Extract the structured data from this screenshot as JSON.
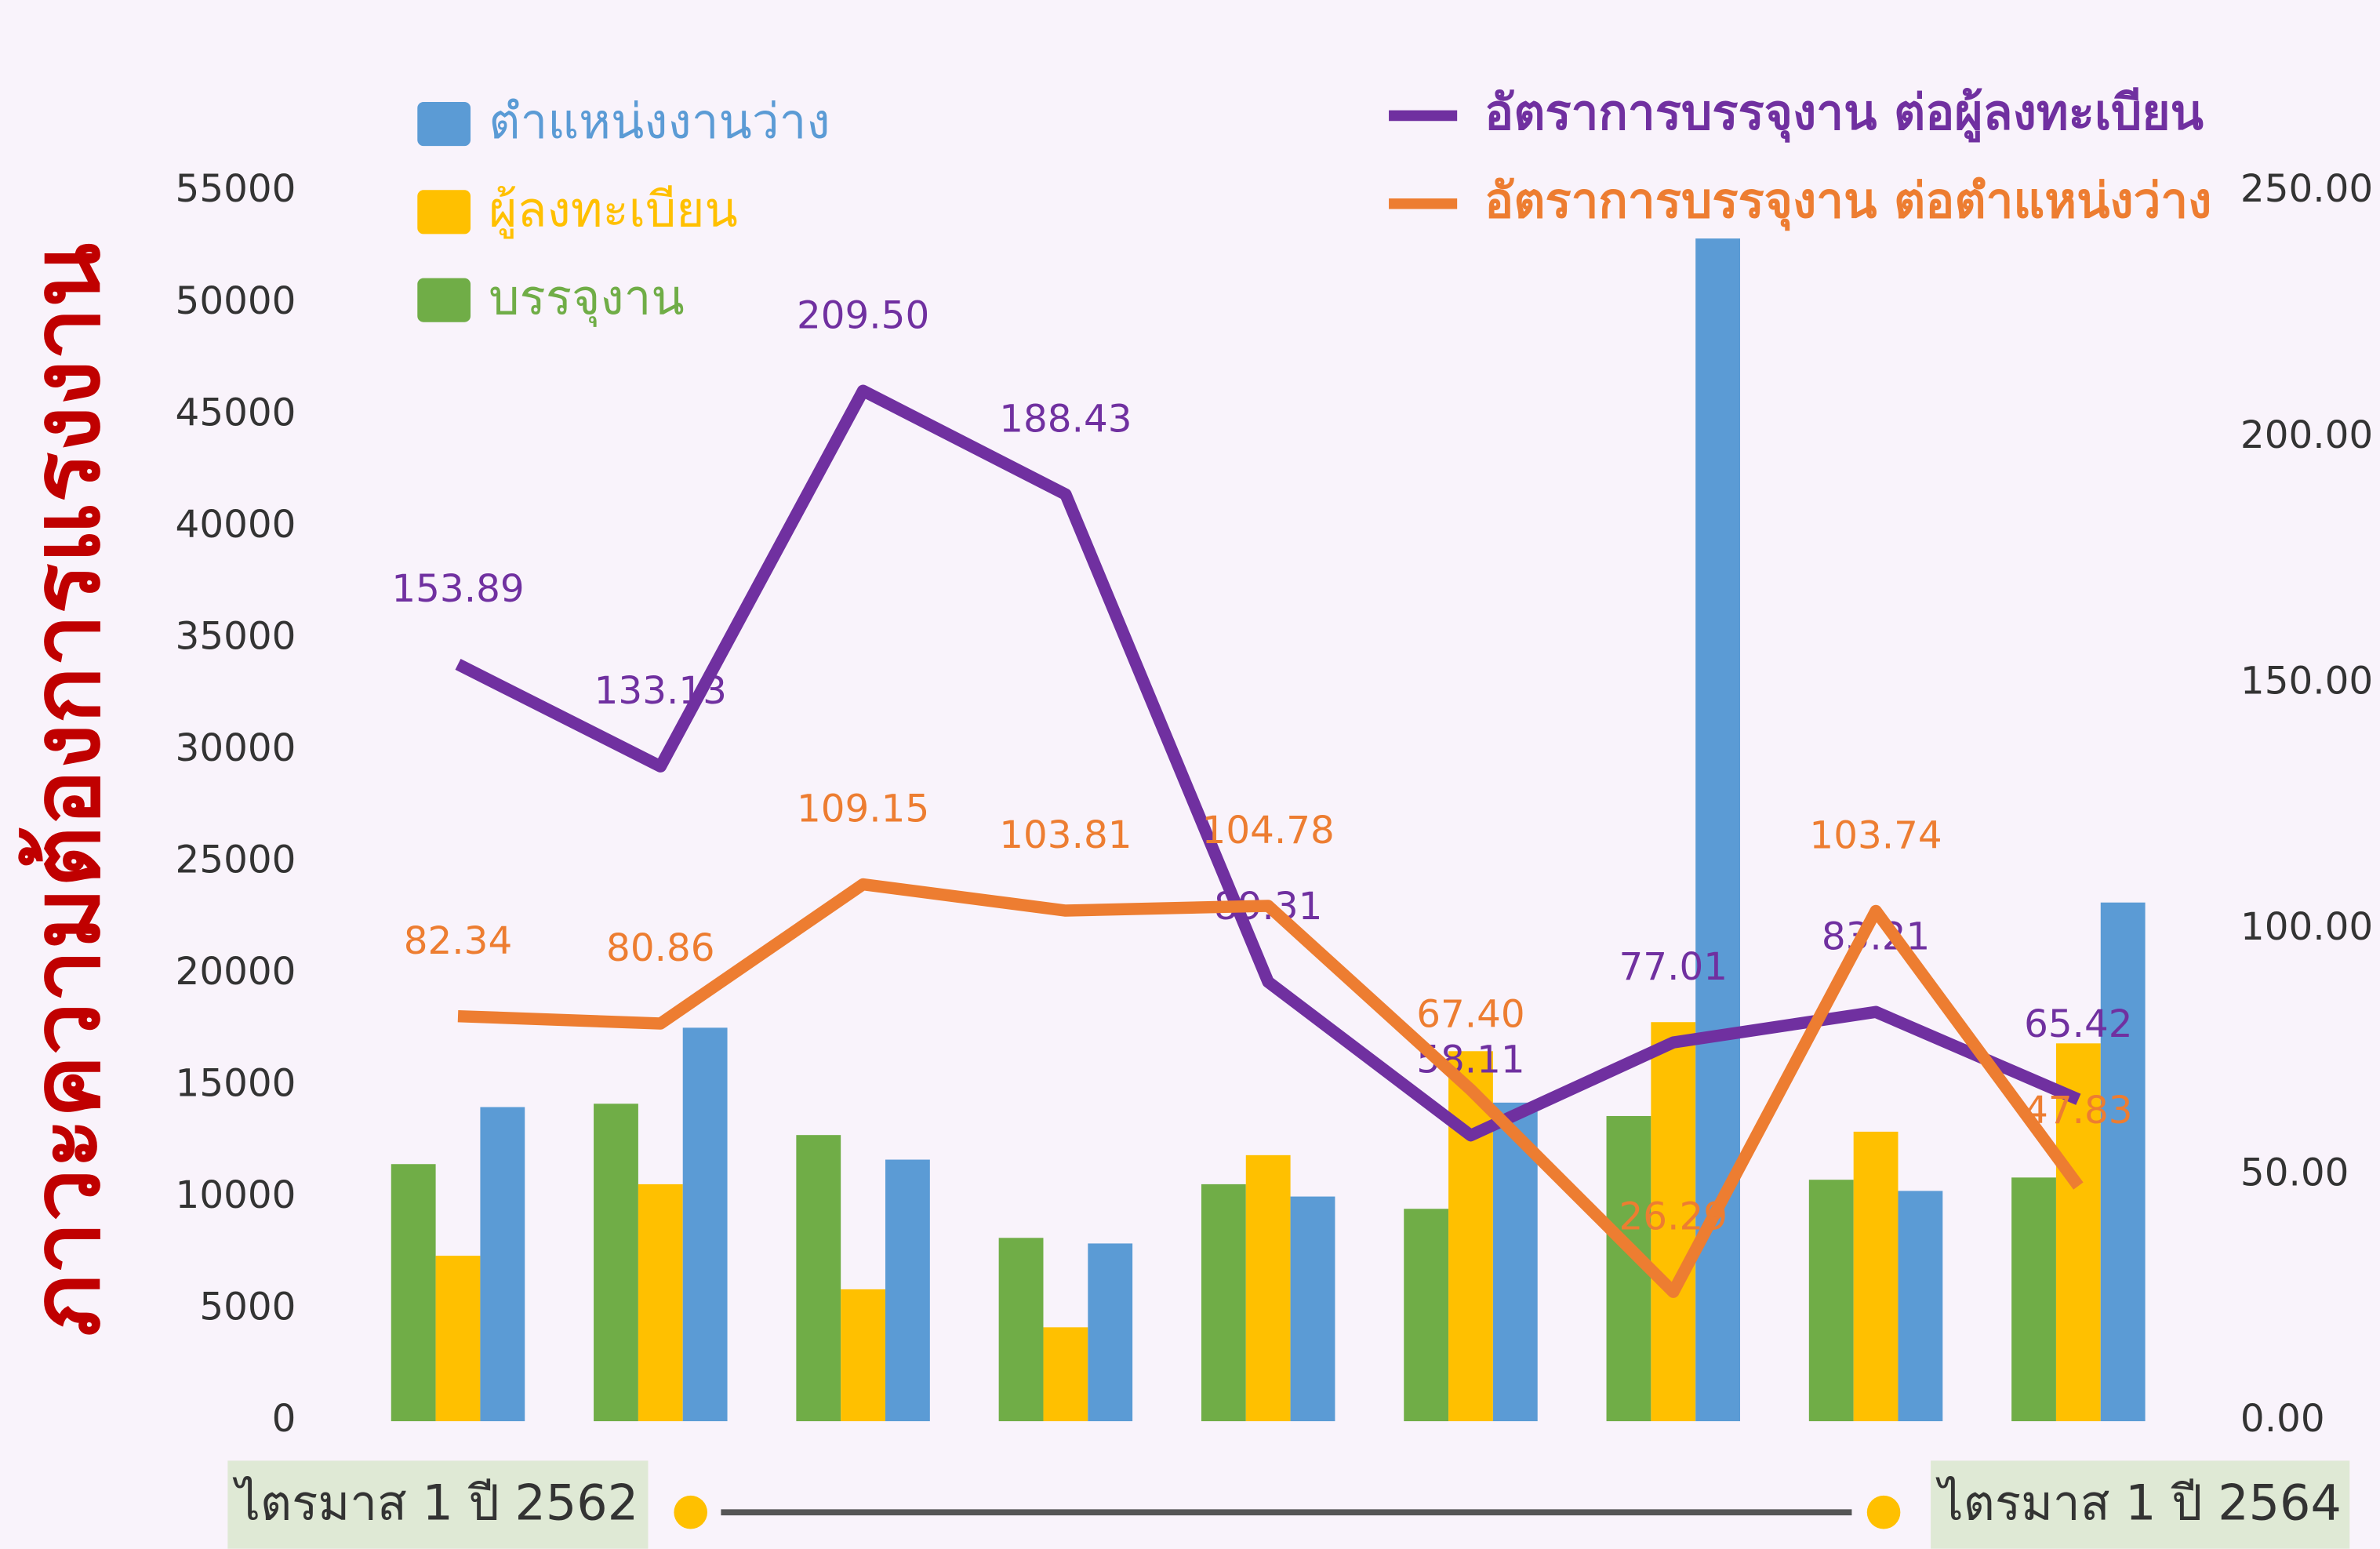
{
  "chart_data": {
    "type": "bar",
    "title": "ภาวะความต้องการแรงงาน",
    "categories": [
      null,
      null,
      null,
      null,
      null,
      null,
      null,
      null,
      null
    ],
    "annotations": [
      "ไตรมาส 1 ปี 2562",
      "ไตรมาส 1 ปี 2564"
    ],
    "ylim": [
      0,
      55000
    ],
    "yticks": [
      0,
      5000,
      10000,
      15000,
      20000,
      25000,
      30000,
      35000,
      40000,
      45000,
      50000,
      55000
    ],
    "y2lim": [
      0,
      250
    ],
    "y2ticks": [
      {
        "value": 0,
        "label": "0.00"
      },
      {
        "value": 50,
        "label": "50.00"
      },
      {
        "value": 100,
        "label": "100.00"
      },
      {
        "value": 150,
        "label": "150.00"
      },
      {
        "value": 200,
        "label": "200.00"
      },
      {
        "value": 250,
        "label": "250.00"
      }
    ],
    "grid": false,
    "series": [
      {
        "name": "บรรจุงาน",
        "color": "#70ad47",
        "values": [
          11500,
          14200,
          12800,
          8200,
          10600,
          9500,
          13650,
          10800,
          10900
        ]
      },
      {
        "name": "ผู้ลงทะเบียน",
        "color": "#ffc000",
        "values": [
          7400,
          10600,
          5900,
          4200,
          11900,
          16550,
          17850,
          12950,
          16900
        ]
      },
      {
        "name": "ตำแหน่งงานว่าง",
        "color": "#5b9bd5",
        "values": [
          14050,
          17600,
          11700,
          7950,
          10050,
          14250,
          52900,
          10300,
          23200
        ]
      },
      {
        "name": "อัตราการบรรจุงาน ต่อผู้ลงทะเบียน",
        "type": "line",
        "axis": "y2",
        "color": "#7030a0",
        "values": [
          153.89,
          133.13,
          209.5,
          188.43,
          89.31,
          58.11,
          77.01,
          83.21,
          65.42
        ],
        "value_labels": [
          "153.89",
          "133.13",
          "209.50",
          "188.43",
          "89.31",
          "58.11",
          "77.01",
          "83.21",
          "65.42"
        ]
      },
      {
        "name": "อัตราการบรรจุงาน ต่อตำแหน่งว่าง",
        "type": "line",
        "axis": "y2",
        "color": "#ed7d31",
        "values": [
          82.34,
          80.86,
          109.15,
          103.81,
          104.78,
          67.4,
          26.29,
          103.74,
          47.83
        ],
        "value_labels": [
          "82.34",
          "80.86",
          "109.15",
          "103.81",
          "104.78",
          "67.40",
          "26.29",
          "103.74",
          "47.83"
        ]
      }
    ]
  }
}
